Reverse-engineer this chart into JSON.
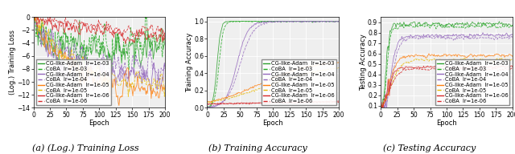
{
  "epochs": 200,
  "legend_entries": [
    {
      "label": "CG-like-Adam",
      "lr": "lr=1e-03",
      "color": "#2ca02c",
      "style": "solid"
    },
    {
      "label": "CoBA",
      "lr": "lr=1e-03",
      "color": "#1faa1f",
      "style": "dashed"
    },
    {
      "label": "CG-like-Adam",
      "lr": "lr=1e-04",
      "color": "#9467bd",
      "style": "solid"
    },
    {
      "label": "CoBA",
      "lr": "lr=1e-04",
      "color": "#9467bd",
      "style": "dashed"
    },
    {
      "label": "CG-like-Adam",
      "lr": "lr=1e-05",
      "color": "#ff7f0e",
      "style": "solid"
    },
    {
      "label": "CoBA",
      "lr": "lr=1e-05",
      "color": "#e8b800",
      "style": "dashed"
    },
    {
      "label": "CG-like-Adam",
      "lr": "lr=1e-06",
      "color": "#d62728",
      "style": "solid"
    },
    {
      "label": "CoBA",
      "lr": "lr=1e-06",
      "color": "#d62728",
      "style": "dashed"
    }
  ],
  "subplot_titles": [
    "(a) (Log.) Training Loss",
    "(b) Training Accuracy",
    "(c) Testing Accuracy"
  ],
  "fig_bg": "#ffffff",
  "ax_bg": "#efefef",
  "grid_color": "#ffffff",
  "fontsize_caption": 8,
  "fontsize_legend": 4.8,
  "fontsize_tick": 5.5,
  "fontsize_label": 6.0
}
